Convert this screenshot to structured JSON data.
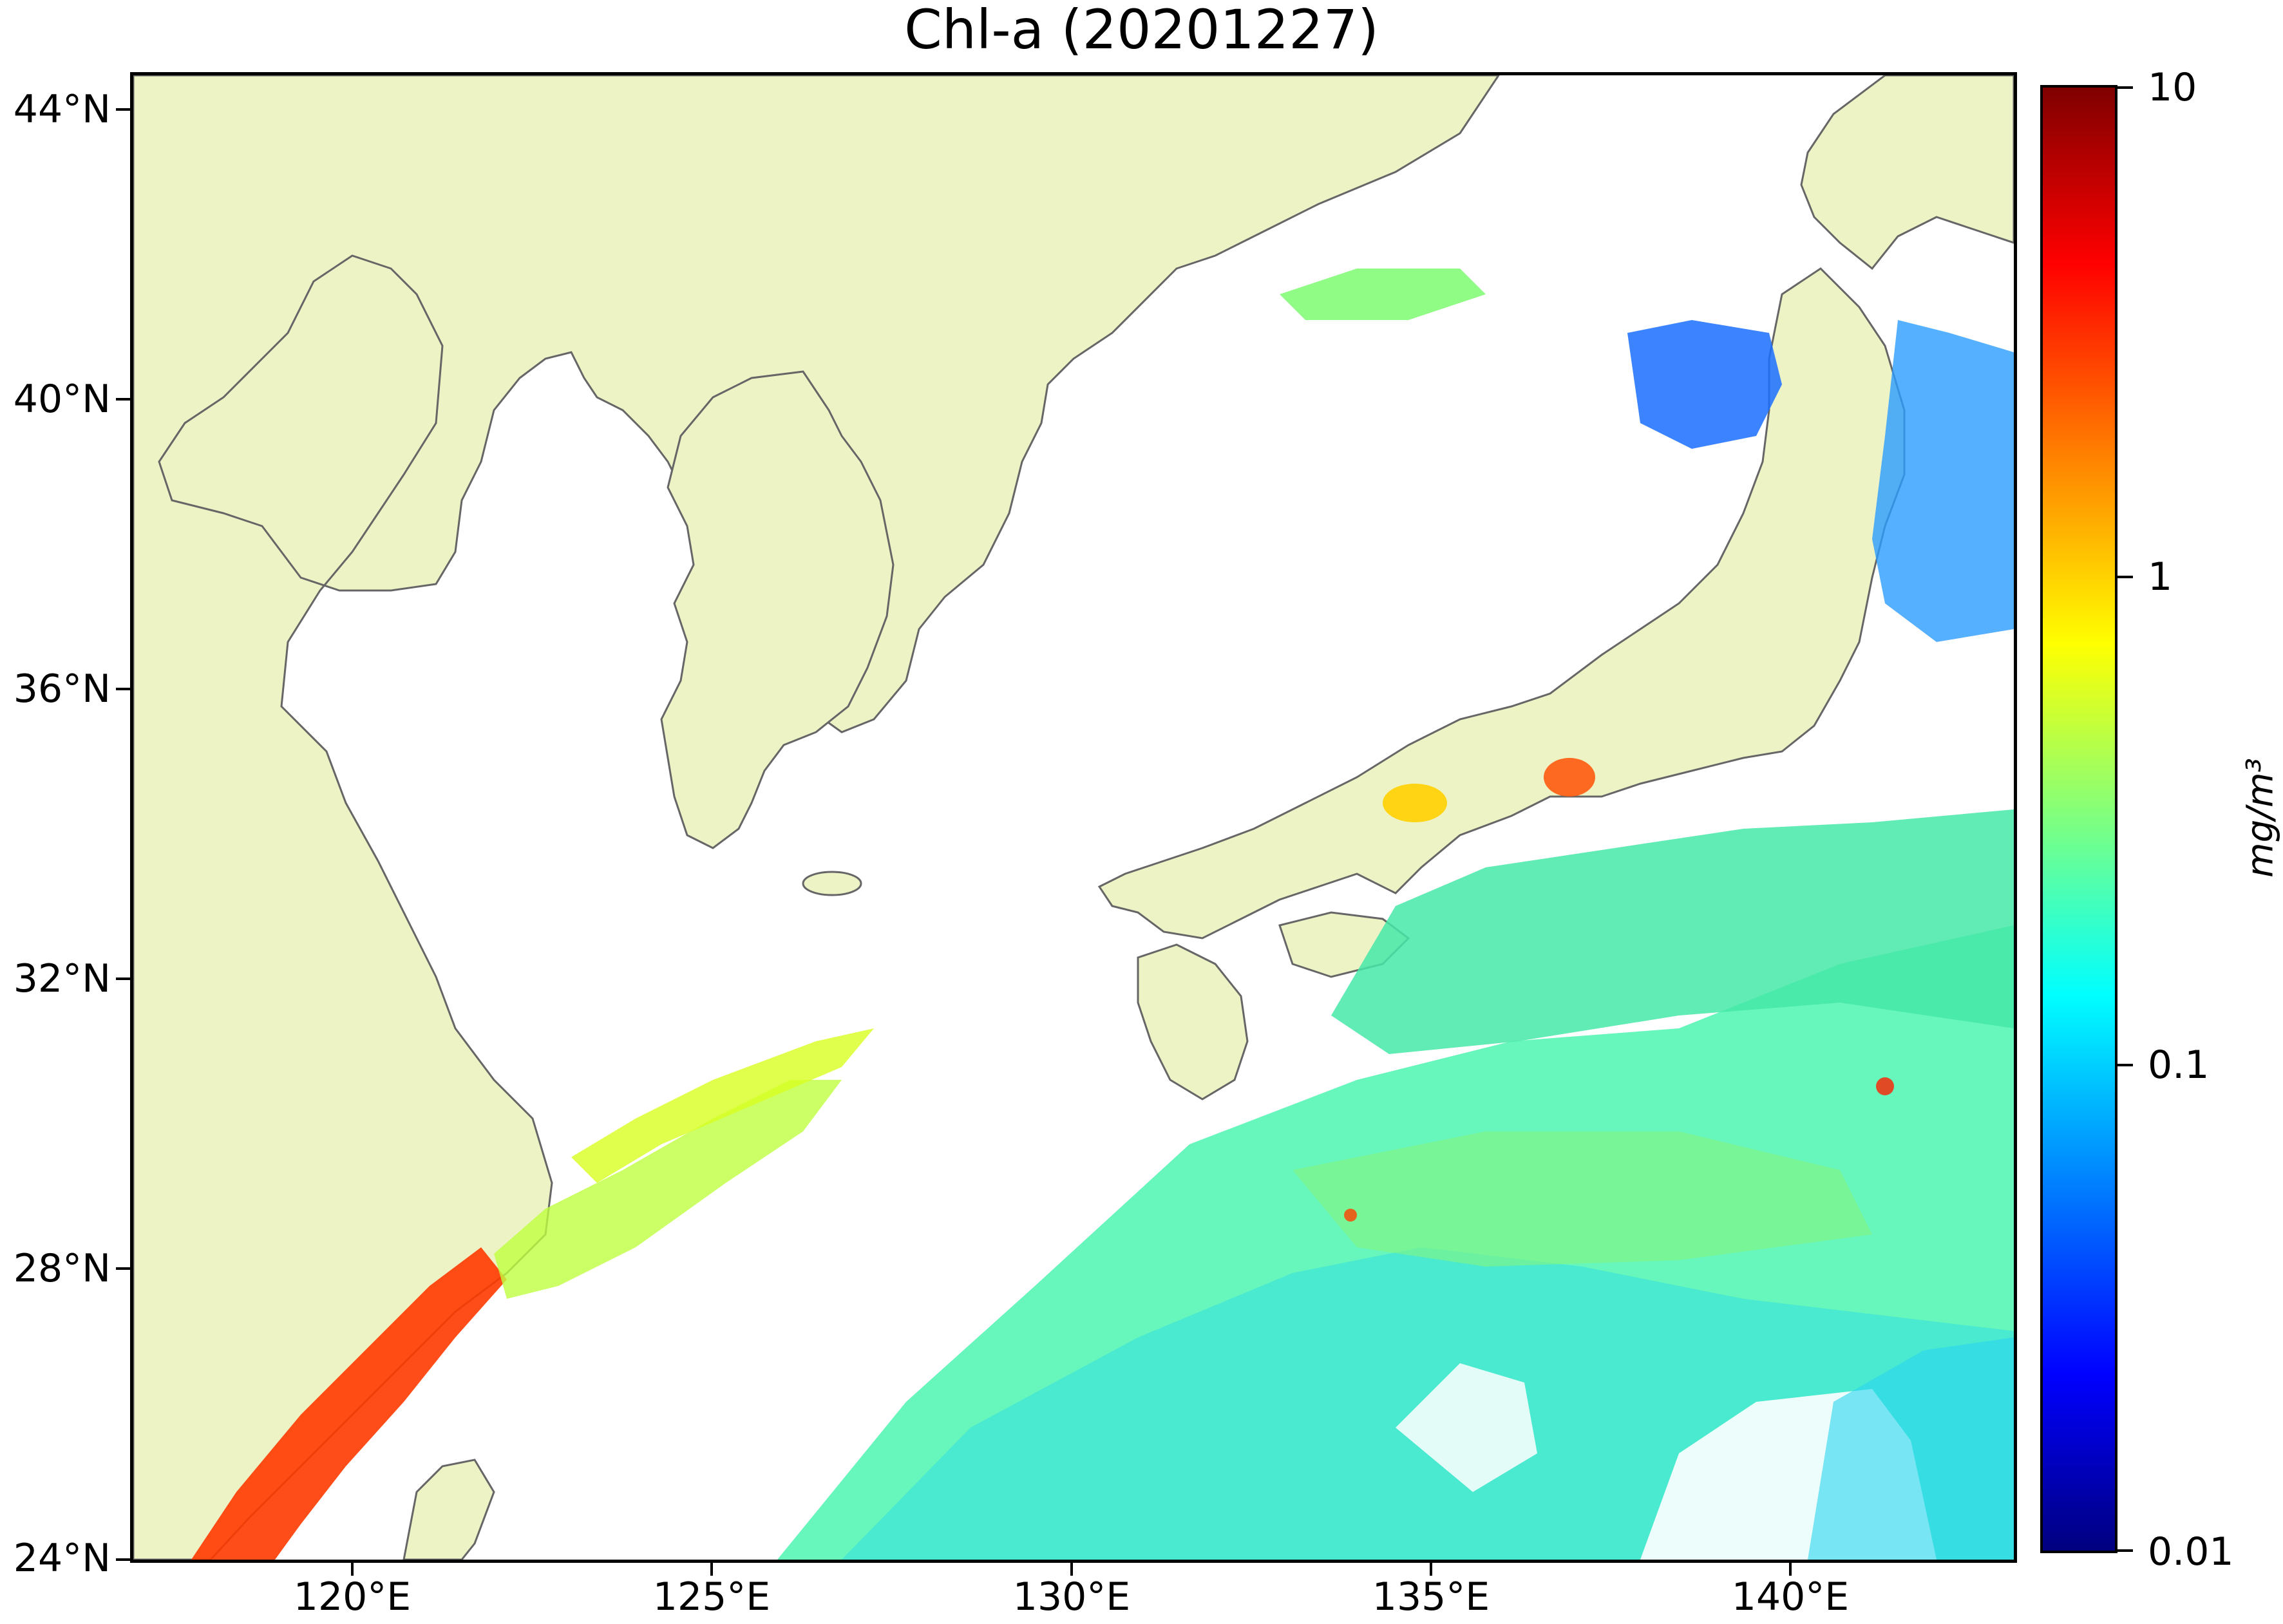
{
  "title": "Chl-a (20201227)",
  "axes": {
    "lat_labels": [
      "44°N",
      "40°N",
      "36°N",
      "32°N",
      "28°N",
      "24°N"
    ],
    "lon_labels": [
      "120°E",
      "125°E",
      "130°E",
      "135°E",
      "140°E"
    ],
    "lat_range": [
      24,
      44.5
    ],
    "lon_range": [
      116.7,
      143
    ]
  },
  "colorbar": {
    "tick_labels": [
      "10",
      "1",
      "0.1",
      "0.01"
    ],
    "unit_label": "mg/m³",
    "scale": "log",
    "range": [
      0.01,
      10
    ],
    "colormap": "jet"
  },
  "colors": {
    "land": "#eef3c6",
    "coastline": "#666666",
    "no_data": "#ffffff"
  }
}
